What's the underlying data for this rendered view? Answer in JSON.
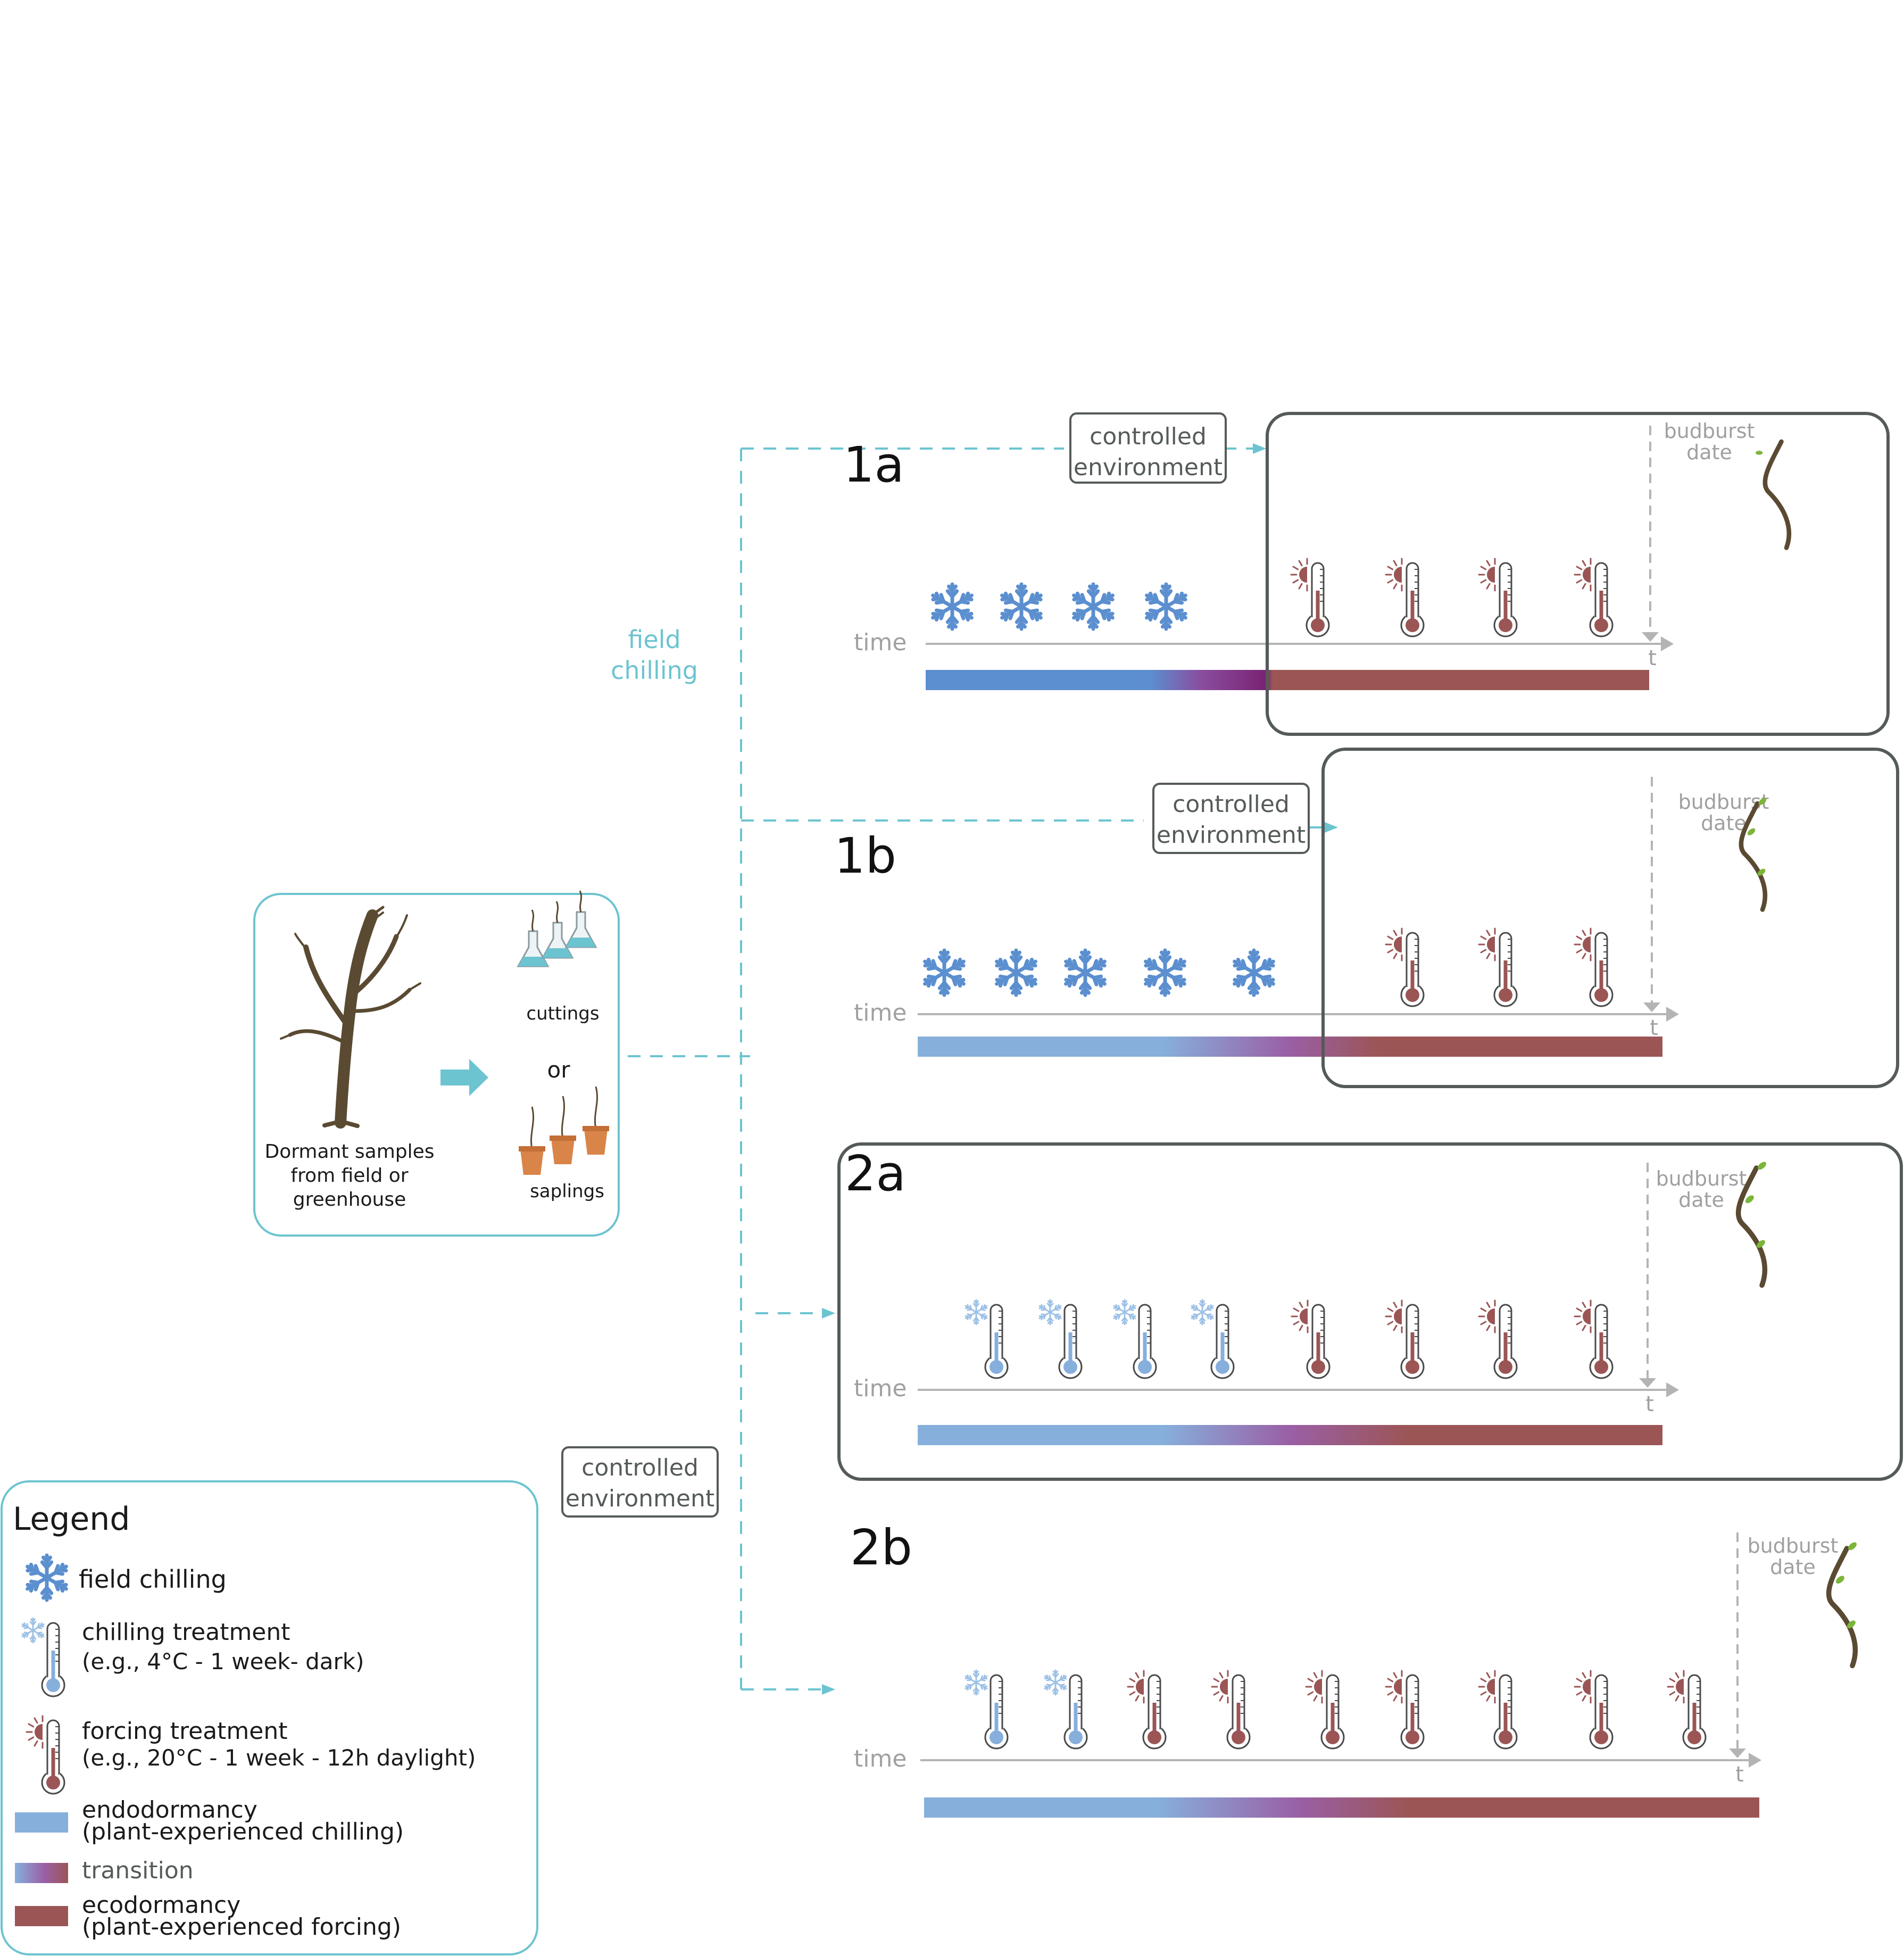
{
  "sample_box": {
    "caption_lines": [
      "Dormant samples",
      "from field or",
      "greenhouse"
    ],
    "cuttings": "cuttings",
    "or": "or",
    "saplings": "saplings"
  },
  "field_chilling_label": [
    "field",
    "chilling"
  ],
  "controlled_env_label": [
    "controlled",
    "environment"
  ],
  "time_label": "time",
  "t_label": "t",
  "budburst_label": [
    "budburst",
    "date"
  ],
  "panels": [
    {
      "id": "1a",
      "title": "1a",
      "field_chilling": 4,
      "chilling_treatments": 0,
      "forcing_treatments": 4,
      "cc_boxed": true
    },
    {
      "id": "1b",
      "title": "1b",
      "field_chilling": 5,
      "chilling_treatments": 0,
      "forcing_treatments": 3,
      "cc_boxed": true
    },
    {
      "id": "2a",
      "title": "2a",
      "field_chilling": 0,
      "chilling_treatments": 4,
      "forcing_treatments": 4,
      "cc_boxed": true
    },
    {
      "id": "2b",
      "title": "2b",
      "field_chilling": 0,
      "chilling_treatments": 2,
      "forcing_treatments": 7,
      "cc_boxed": false
    }
  ],
  "legend": {
    "title": "Legend",
    "items": [
      {
        "kind": "snowflake",
        "lines": [
          "field chilling"
        ]
      },
      {
        "kind": "chill-thermo",
        "lines": [
          "chilling treatment",
          "(e.g., 4°C - 1 week- dark)"
        ]
      },
      {
        "kind": "force-thermo",
        "lines": [
          "forcing treatment",
          "(e.g., 20°C - 1 week - 12h daylight)"
        ]
      },
      {
        "kind": "endo",
        "lines": [
          "endodormancy",
          "(plant-experienced chilling)"
        ]
      },
      {
        "kind": "transition",
        "lines": [
          "transition"
        ]
      },
      {
        "kind": "eco",
        "lines": [
          "ecodormancy",
          "(plant-experienced forcing)"
        ]
      }
    ]
  },
  "colors": {
    "cyan": "#6cc4d0",
    "snow": "#5b8fcf",
    "snow_light": "#9cc0e6",
    "endo": "#86afdc",
    "endo_dark": "#5b8fcf",
    "transition": "#9a5fa5",
    "transition_dark": "#7a2373",
    "eco": "#9b5555",
    "frame": "#555a5a",
    "axis": "#b4b4b4",
    "grey_text": "#a0a0a0",
    "tree": "#5a4a32",
    "pot": "#d98448",
    "leaf": "#7bb53a"
  }
}
